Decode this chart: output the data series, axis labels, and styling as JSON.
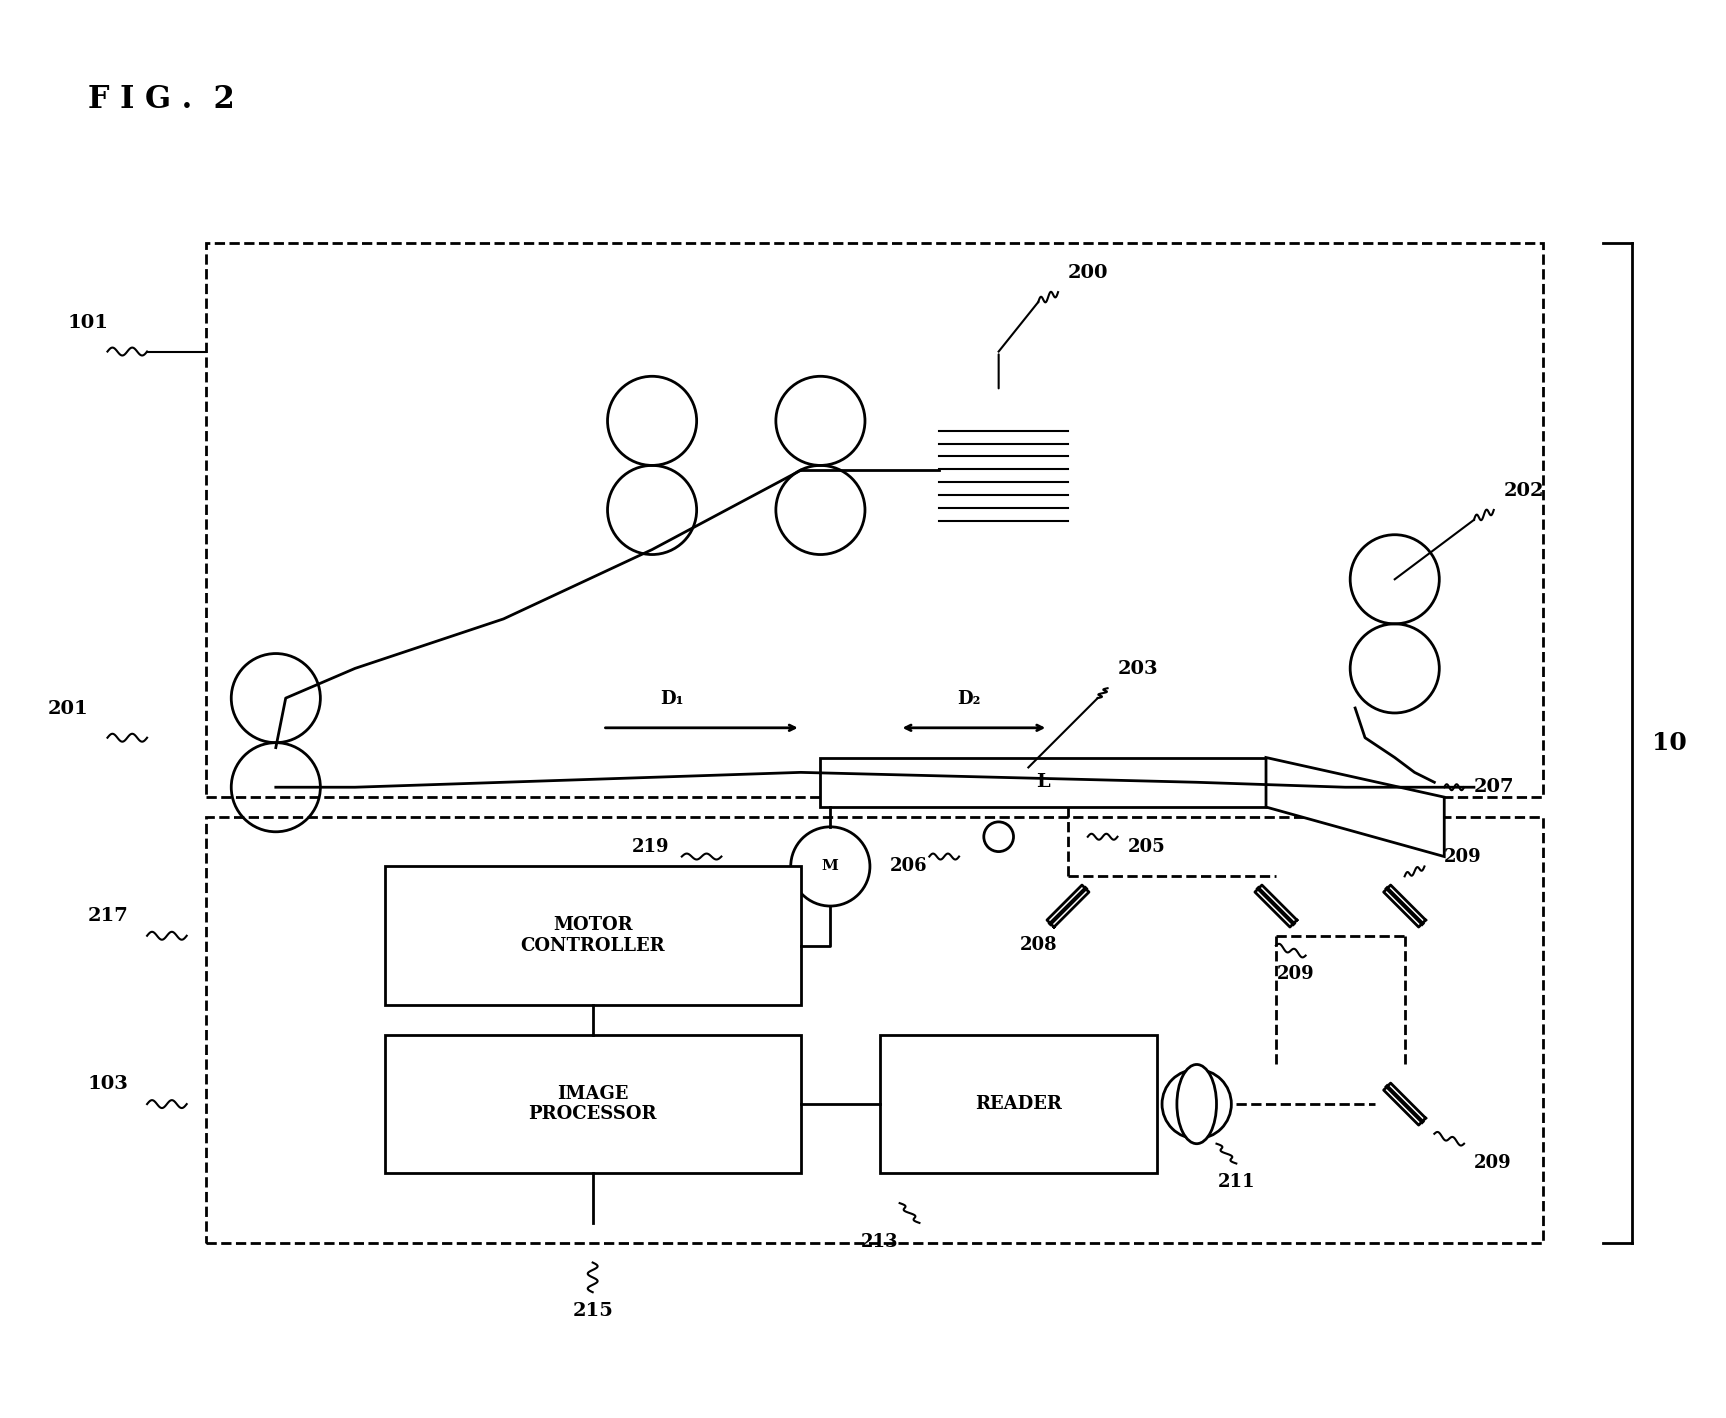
{
  "title": "FIG. 2",
  "bg_color": "#ffffff",
  "line_color": "#000000",
  "fig_width": 17.26,
  "fig_height": 14.18,
  "labels": {
    "fig_title": "F I G .  2",
    "n200": "200",
    "n201": "201",
    "n202": "202",
    "n203": "203",
    "n101": "101",
    "n10": "10",
    "n217": "217",
    "n103": "103",
    "n219": "219",
    "n206": "206",
    "n205": "205",
    "n208": "208",
    "n209": "209",
    "n211": "211",
    "n213": "213",
    "n215": "215",
    "n207": "207",
    "D1": "D₁",
    "D2": "D₂",
    "L": "L",
    "M": "M",
    "motor_controller": "MOTOR\nCONTROLLER",
    "image_processor": "IMAGE\nPROCESSOR",
    "reader": "READER"
  }
}
